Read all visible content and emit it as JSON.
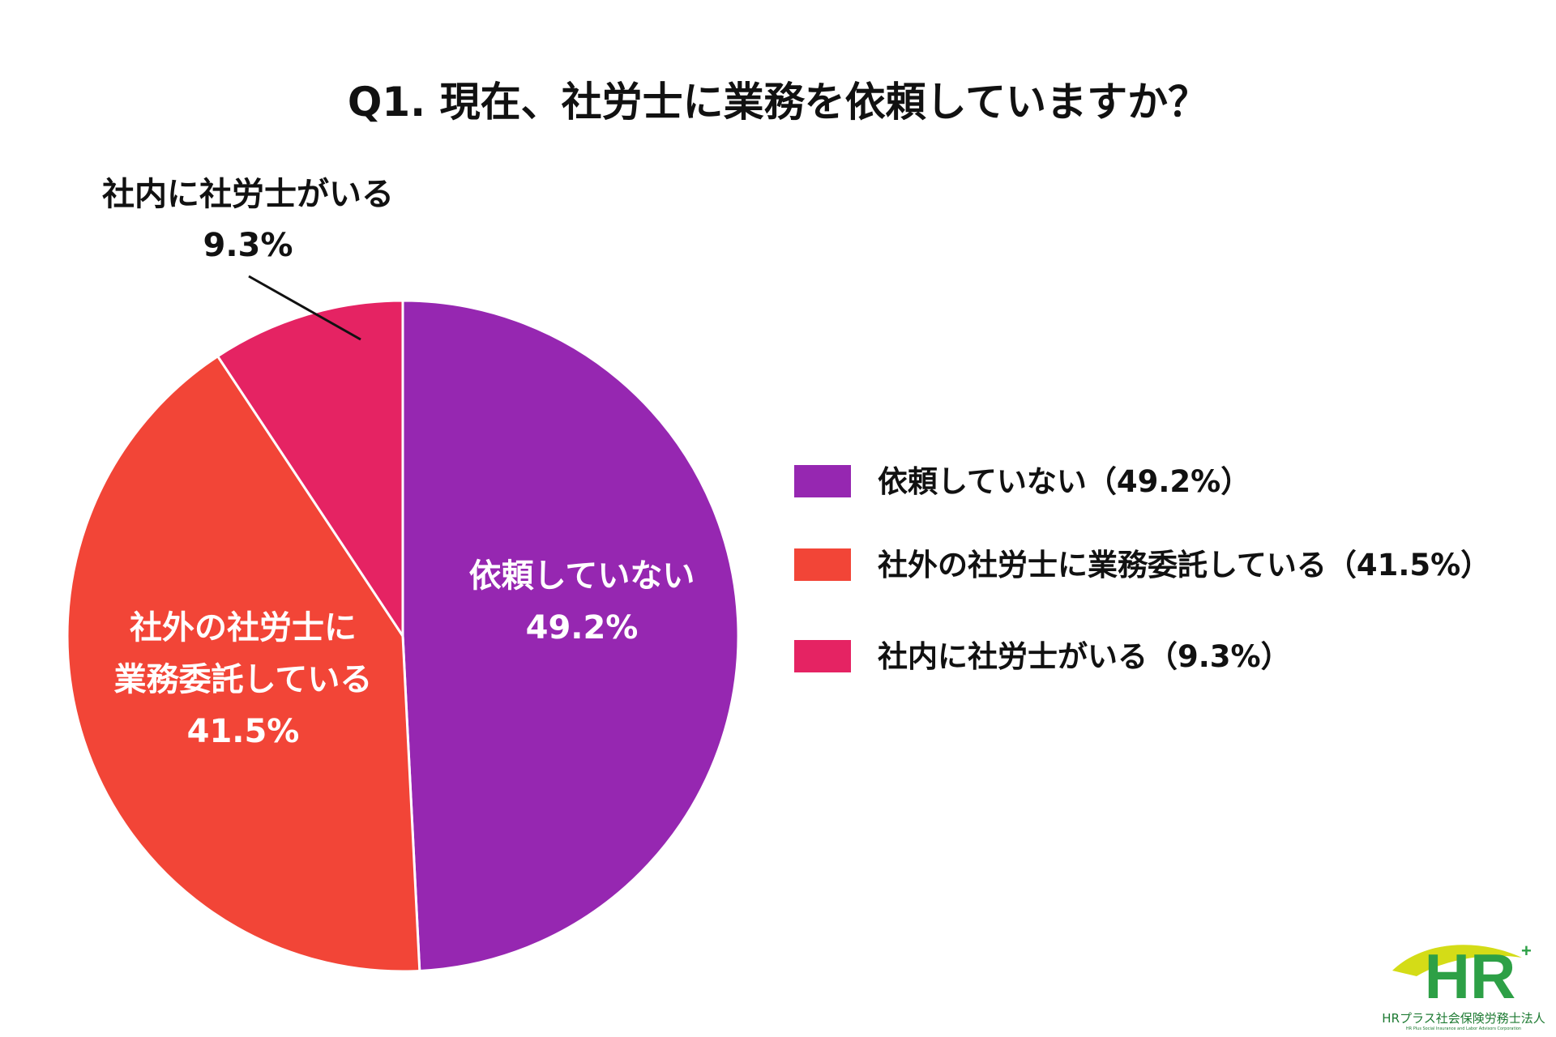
{
  "chart_data": {
    "type": "pie",
    "title": "Q1. 現在、社労士に業務を依頼していますか？",
    "slices": [
      {
        "key": "not_requested",
        "name": "依頼していない",
        "value": 49.2,
        "value_label": "49.2%",
        "legend_label": "依頼していない（49.2%）",
        "slice_label_lines": [
          "依頼していない",
          "49.2%"
        ],
        "label_position": "inside",
        "color": "#9627B1"
      },
      {
        "key": "external",
        "name": "社外の社労士に業務委託している",
        "value": 41.5,
        "value_label": "41.5%",
        "legend_label": "社外の社労士に業務委託している（41.5%）",
        "slice_label_lines": [
          "社外の社労士に",
          "業務委託している",
          "41.5%"
        ],
        "label_position": "inside",
        "color": "#F24537"
      },
      {
        "key": "internal",
        "name": "社内に社労士がいる",
        "value": 9.3,
        "value_label": "9.3%",
        "legend_label": "社内に社労士がいる（9.3%）",
        "slice_label_lines": [
          "社内に社労士がいる",
          "9.3%"
        ],
        "label_position": "outside",
        "color": "#E52363"
      }
    ],
    "start": "12 o'clock",
    "direction": "clockwise",
    "legend_position": "right"
  },
  "logo": {
    "text": "HR",
    "caption": "HRプラス社会保険労務士法人",
    "subcaption": "HR Plus Social Insurance and Labor Advisors Corporation",
    "colors": {
      "green": "#2DA046",
      "yellow": "#D4DC17",
      "caption": "#1D7A32"
    }
  }
}
